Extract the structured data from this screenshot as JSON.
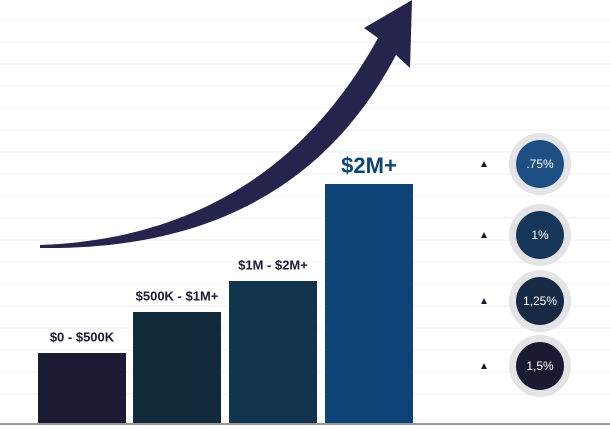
{
  "chart_data": {
    "type": "bar",
    "categories": [
      "$0 - $500K",
      "$500K - $1M+",
      "$1M - $2M+",
      "$2M+"
    ],
    "values": [
      70,
      111,
      142,
      239
    ],
    "colors": [
      "#1b1b33",
      "#102a3b",
      "#13344f",
      "#0e4377"
    ],
    "rates": [
      ".75%",
      "1%",
      "1,25%",
      "1,5%"
    ],
    "rate_colors": [
      "#1e4f84",
      "#17375a",
      "#172a45",
      "#1a1a33"
    ]
  }
}
